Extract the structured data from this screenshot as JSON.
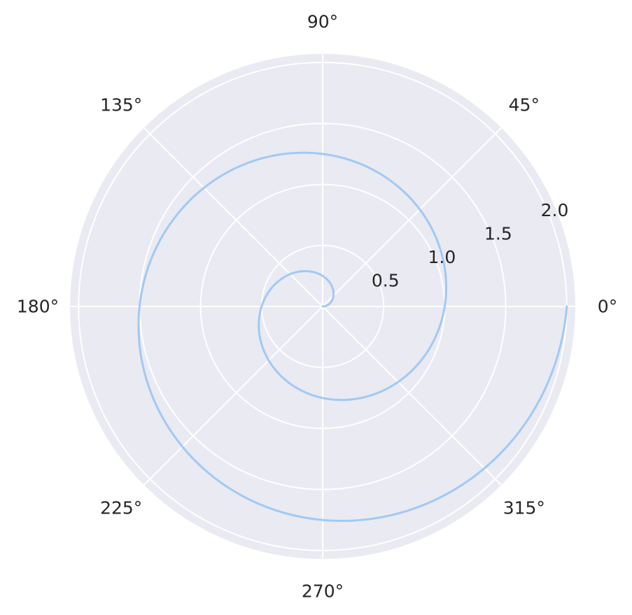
{
  "chart_data": {
    "type": "line",
    "projection": "polar",
    "series": [
      {
        "x_unit": "radians",
        "x": [
          0,
          1.25664,
          2.51327,
          3.76991,
          5.02655,
          6.28319,
          7.53982,
          8.79646,
          10.0531,
          11.30973,
          12.56637
        ],
        "y": [
          0,
          0.2,
          0.4,
          0.6,
          0.8,
          1.0,
          1.2,
          1.4,
          1.6,
          1.8,
          2.0
        ],
        "color": "#a1c9f4"
      }
    ],
    "theta_ticks": [
      {
        "angle_deg": 0,
        "label": "0°"
      },
      {
        "angle_deg": 45,
        "label": "45°"
      },
      {
        "angle_deg": 90,
        "label": "90°"
      },
      {
        "angle_deg": 135,
        "label": "135°"
      },
      {
        "angle_deg": 180,
        "label": "180°"
      },
      {
        "angle_deg": 225,
        "label": "225°"
      },
      {
        "angle_deg": 270,
        "label": "270°"
      },
      {
        "angle_deg": 315,
        "label": "315°"
      }
    ],
    "r_ticks": [
      {
        "value": 0.5,
        "label": "0.5"
      },
      {
        "value": 1.0,
        "label": "1.0"
      },
      {
        "value": 1.5,
        "label": "1.5"
      },
      {
        "value": 2.0,
        "label": "2.0"
      }
    ],
    "rlim": [
      0,
      2.07
    ],
    "r_label_angle_deg": 22.5,
    "grid": true,
    "colors": {
      "background": "#eaeaf2",
      "grid": "#ffffff",
      "text": "#262626",
      "line": "#a1c9f4"
    }
  }
}
